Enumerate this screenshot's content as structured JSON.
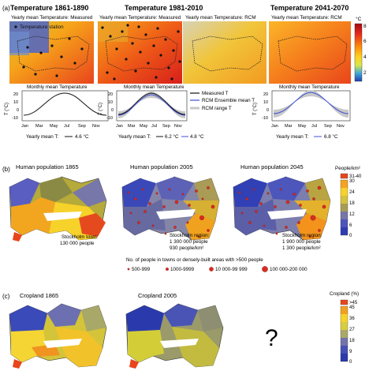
{
  "panel_labels": {
    "a": "(a)",
    "b": "(b)",
    "c": "(c)"
  },
  "row_a": {
    "col1_title": "Temperature 1861-1890",
    "col1_map_label": "Yearly mean Temperature: Measured",
    "station_label": "Temperature station",
    "col2_title": "Temperature 1981-2010",
    "col2_left_label": "Yearly mean Temperature: Measured",
    "col2_right_label": "Yearly mean Temperature: RCM",
    "col3_title": "Temperature 2041-2070",
    "col3_map_label": "Yearly mean Temperature: RCM",
    "colorbar_unit": "°C",
    "colorbar_ticks": [
      "8",
      "6",
      "4",
      "2"
    ],
    "colors": {
      "hot": "#c41e1e",
      "warm": "#ff7f00",
      "mild": "#ffd11a",
      "cool": "#2e4fc4",
      "measured": "#111111",
      "rcm": "#3c4fd8",
      "range": "#c8c8c8"
    }
  },
  "monthly_charts": [
    {
      "title": "Monthly mean Temperature",
      "ylabel": "T (°C)",
      "yticks": [
        "20",
        "10",
        "0",
        "-10"
      ],
      "xticks": [
        "Jan",
        "Mar",
        "May",
        "Jul",
        "Sep",
        "Nov"
      ],
      "caption": "Yearly mean T:",
      "measured_value": "4.6 °C",
      "rcm_value": ""
    },
    {
      "title": "Monthly mean Temperature",
      "ylabel": "T (°C)",
      "yticks": [
        "20",
        "10",
        "0",
        "-10"
      ],
      "xticks": [
        "Jan",
        "Mar",
        "May",
        "Jul",
        "Sep",
        "Nov"
      ],
      "caption": "Yearly mean T:",
      "measured_value": "6.2 °C",
      "rcm_value": "4.8 °C"
    },
    {
      "title": "Monthly mean Temperature",
      "ylabel": "T (°C)",
      "yticks": [
        "20",
        "10",
        "0",
        "-10"
      ],
      "xticks": [
        "Jan",
        "Mar",
        "May",
        "Jul",
        "Sep",
        "Nov"
      ],
      "caption": "Yearly mean T:",
      "measured_value": "",
      "rcm_value": "6.8 °C"
    }
  ],
  "monthly_legend": [
    "Measured T",
    "RCM Ensemble mean T",
    "RCM range T"
  ],
  "row_b": {
    "title_1865": "Human population 1865",
    "title_2005": "Human population 2005",
    "title_2045": "Human population 2045",
    "town_1865": "Stockholm town:",
    "town_1865_value": "130 000 people",
    "region_2005": "Stockholm region:",
    "region_2005_people": "1 300 000 people",
    "region_2005_density": "930 people/km²",
    "region_2045": "Stockholm region:",
    "region_2045_people": "1 900 000 people",
    "region_2045_density": "1 300 people/km²",
    "colorbar_title": "People/km²",
    "colorbar_top": "31-40",
    "colorbar_ticks": [
      "30",
      "24",
      "18",
      "12",
      "6",
      "0"
    ],
    "legend_title": "No. of people in towns or densely-built areas with >500 people",
    "legend_items": [
      "500-999",
      "1000-9999",
      "10 000-99 999",
      "100 000-200 000"
    ]
  },
  "row_c": {
    "title_1865": "Cropland 1865",
    "title_2005": "Cropland 2005",
    "question": "?",
    "colorbar_title": "Cropland (%)",
    "colorbar_top": ">45",
    "colorbar_ticks": [
      "45",
      "36",
      "27",
      "18",
      "9",
      "0"
    ]
  }
}
